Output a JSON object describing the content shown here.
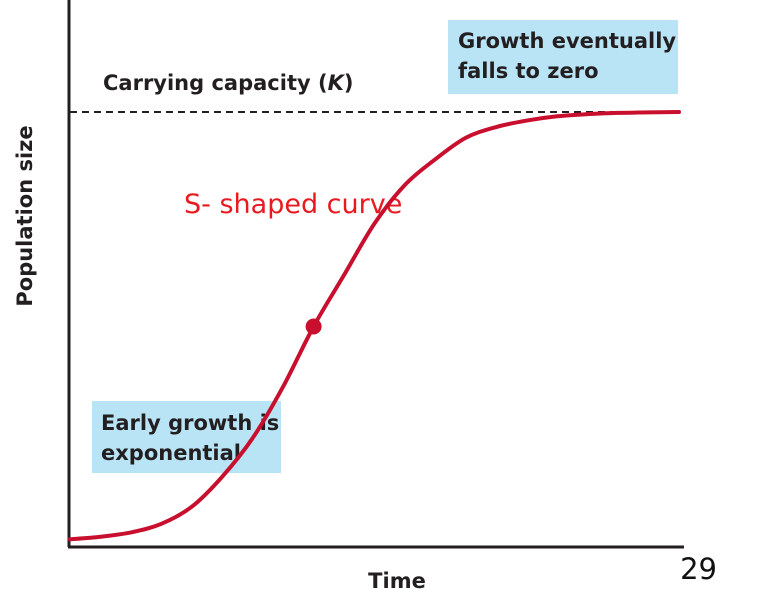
{
  "chart_data": {
    "type": "line",
    "xlabel": "Time",
    "ylabel": "Population size",
    "carrying_capacity_label": {
      "prefix": "Carrying capacity (",
      "symbol": "K",
      "suffix": ")"
    },
    "curve_title": "S- shaped curve",
    "annotations": {
      "top_right": [
        "Growth eventually",
        "falls to zero"
      ],
      "bottom_left": [
        "Early growth is",
        "exponential"
      ]
    },
    "series": [
      {
        "x": [
          0,
          5,
          10,
          15,
          20,
          25,
          30,
          35,
          40,
          45,
          50,
          55,
          60,
          65,
          70,
          75,
          80,
          85,
          90,
          95,
          100
        ],
        "y": [
          0.004,
          0.01,
          0.02,
          0.04,
          0.08,
          0.15,
          0.24,
          0.36,
          0.5,
          0.62,
          0.74,
          0.83,
          0.89,
          0.94,
          0.965,
          0.98,
          0.99,
          0.995,
          0.998,
          0.999,
          1.0
        ]
      }
    ],
    "inflection_point": {
      "x": 40,
      "y": 0.5
    },
    "xlim": [
      0,
      100
    ],
    "ylim": [
      0,
      1.0
    ],
    "carrying_capacity": 1.0,
    "colors": {
      "curve": "#c8102e",
      "note_bg": "#b9e4f6",
      "axis": "#231f20",
      "title": "#e8191f"
    }
  },
  "page_number": "29"
}
